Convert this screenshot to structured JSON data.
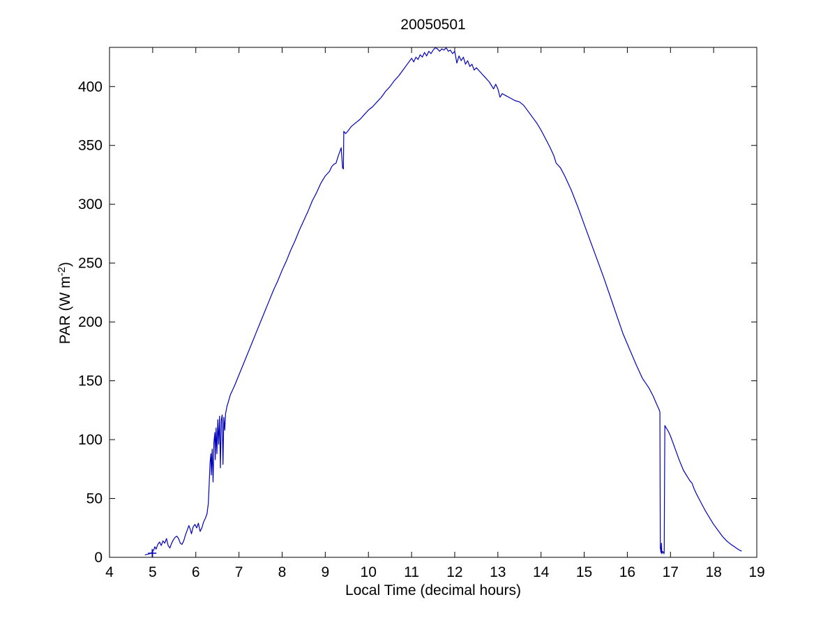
{
  "chart_data": {
    "type": "line",
    "title": "20050501",
    "xlabel": "Local Time (decimal hours)",
    "ylabel": "PAR (W m-2)",
    "ylabel_parts": {
      "prefix": "PAR (W m",
      "superscript": "-2",
      "suffix": ")"
    },
    "xlim": [
      4,
      19
    ],
    "ylim": [
      0,
      433.3
    ],
    "x_ticks": [
      4,
      5,
      6,
      7,
      8,
      9,
      10,
      11,
      12,
      13,
      14,
      15,
      16,
      17,
      18,
      19
    ],
    "y_ticks": [
      0,
      50,
      100,
      150,
      200,
      250,
      300,
      350,
      400
    ],
    "grid": false,
    "legend": false,
    "background_color": "#FFFFFF",
    "axis_color": "#000000",
    "line_color": "#0000BB",
    "marker": {
      "shape": "plus",
      "x": 4.99,
      "y": 3.5
    },
    "series": [
      {
        "name": "PAR",
        "points": [
          [
            4.82,
            2
          ],
          [
            4.87,
            2.5
          ],
          [
            4.92,
            3
          ],
          [
            4.97,
            3.5
          ],
          [
            5.02,
            6
          ],
          [
            5.05,
            9
          ],
          [
            5.08,
            7
          ],
          [
            5.12,
            11
          ],
          [
            5.16,
            13
          ],
          [
            5.2,
            10
          ],
          [
            5.24,
            14
          ],
          [
            5.28,
            12
          ],
          [
            5.32,
            16
          ],
          [
            5.36,
            10
          ],
          [
            5.4,
            8
          ],
          [
            5.44,
            12
          ],
          [
            5.48,
            15
          ],
          [
            5.52,
            17
          ],
          [
            5.56,
            18
          ],
          [
            5.6,
            16
          ],
          [
            5.64,
            12
          ],
          [
            5.68,
            11
          ],
          [
            5.72,
            14
          ],
          [
            5.76,
            19
          ],
          [
            5.8,
            23
          ],
          [
            5.84,
            27
          ],
          [
            5.87,
            24
          ],
          [
            5.9,
            20
          ],
          [
            5.94,
            26
          ],
          [
            5.98,
            28
          ],
          [
            6.02,
            25
          ],
          [
            6.06,
            29
          ],
          [
            6.1,
            22
          ],
          [
            6.14,
            25
          ],
          [
            6.18,
            30
          ],
          [
            6.22,
            33
          ],
          [
            6.26,
            37
          ],
          [
            6.29,
            46
          ],
          [
            6.31,
            62
          ],
          [
            6.33,
            80
          ],
          [
            6.35,
            88
          ],
          [
            6.36,
            70
          ],
          [
            6.38,
            92
          ],
          [
            6.4,
            64
          ],
          [
            6.42,
            98
          ],
          [
            6.44,
            106
          ],
          [
            6.45,
            83
          ],
          [
            6.47,
            110
          ],
          [
            6.49,
            88
          ],
          [
            6.51,
            117
          ],
          [
            6.53,
            96
          ],
          [
            6.55,
            120
          ],
          [
            6.57,
            76
          ],
          [
            6.59,
            116
          ],
          [
            6.61,
            121
          ],
          [
            6.63,
            79
          ],
          [
            6.65,
            119
          ],
          [
            6.67,
            108
          ],
          [
            6.69,
            122
          ],
          [
            6.72,
            128
          ],
          [
            6.76,
            133
          ],
          [
            6.8,
            138
          ],
          [
            6.9,
            146
          ],
          [
            7,
            155
          ],
          [
            7.1,
            164
          ],
          [
            7.2,
            173
          ],
          [
            7.3,
            182
          ],
          [
            7.4,
            191
          ],
          [
            7.5,
            200
          ],
          [
            7.6,
            209
          ],
          [
            7.7,
            218
          ],
          [
            7.8,
            227
          ],
          [
            7.9,
            235
          ],
          [
            8,
            244
          ],
          [
            8.1,
            252
          ],
          [
            8.2,
            261
          ],
          [
            8.3,
            269
          ],
          [
            8.4,
            278
          ],
          [
            8.5,
            286
          ],
          [
            8.6,
            294
          ],
          [
            8.7,
            303
          ],
          [
            8.8,
            310
          ],
          [
            8.9,
            318
          ],
          [
            9,
            324
          ],
          [
            9.1,
            328
          ],
          [
            9.15,
            332
          ],
          [
            9.2,
            334
          ],
          [
            9.25,
            335
          ],
          [
            9.3,
            341
          ],
          [
            9.34,
            345
          ],
          [
            9.37,
            348
          ],
          [
            9.4,
            331
          ],
          [
            9.42,
            330
          ],
          [
            9.43,
            362
          ],
          [
            9.47,
            360
          ],
          [
            9.52,
            362
          ],
          [
            9.6,
            366
          ],
          [
            9.7,
            369
          ],
          [
            9.8,
            372
          ],
          [
            9.9,
            376
          ],
          [
            10,
            380
          ],
          [
            10.1,
            383
          ],
          [
            10.2,
            387
          ],
          [
            10.3,
            391
          ],
          [
            10.4,
            396
          ],
          [
            10.5,
            400
          ],
          [
            10.6,
            405
          ],
          [
            10.7,
            409
          ],
          [
            10.8,
            414
          ],
          [
            10.9,
            419
          ],
          [
            11,
            424
          ],
          [
            11.05,
            421
          ],
          [
            11.1,
            425
          ],
          [
            11.15,
            423
          ],
          [
            11.2,
            427
          ],
          [
            11.25,
            425
          ],
          [
            11.3,
            429
          ],
          [
            11.35,
            426
          ],
          [
            11.4,
            430
          ],
          [
            11.45,
            428
          ],
          [
            11.5,
            431
          ],
          [
            11.55,
            433
          ],
          [
            11.6,
            432
          ],
          [
            11.65,
            430
          ],
          [
            11.7,
            432
          ],
          [
            11.75,
            431
          ],
          [
            11.8,
            433
          ],
          [
            11.85,
            430
          ],
          [
            11.9,
            431
          ],
          [
            11.95,
            428
          ],
          [
            12,
            430
          ],
          [
            12.05,
            420
          ],
          [
            12.1,
            426
          ],
          [
            12.15,
            422
          ],
          [
            12.2,
            425
          ],
          [
            12.25,
            419
          ],
          [
            12.3,
            422
          ],
          [
            12.35,
            417
          ],
          [
            12.4,
            419
          ],
          [
            12.45,
            414
          ],
          [
            12.5,
            416
          ],
          [
            12.6,
            412
          ],
          [
            12.7,
            408
          ],
          [
            12.8,
            404
          ],
          [
            12.9,
            398
          ],
          [
            12.95,
            402
          ],
          [
            13,
            398
          ],
          [
            13.05,
            391
          ],
          [
            13.1,
            394
          ],
          [
            13.2,
            392
          ],
          [
            13.3,
            390
          ],
          [
            13.4,
            388
          ],
          [
            13.5,
            387
          ],
          [
            13.6,
            384
          ],
          [
            13.7,
            379
          ],
          [
            13.8,
            374
          ],
          [
            13.9,
            369
          ],
          [
            14,
            363
          ],
          [
            14.1,
            356
          ],
          [
            14.2,
            349
          ],
          [
            14.3,
            341
          ],
          [
            14.35,
            335
          ],
          [
            14.45,
            331
          ],
          [
            14.55,
            324
          ],
          [
            14.7,
            312
          ],
          [
            14.85,
            298
          ],
          [
            15,
            283
          ],
          [
            15.15,
            268
          ],
          [
            15.3,
            253
          ],
          [
            15.45,
            238
          ],
          [
            15.6,
            222
          ],
          [
            15.75,
            206
          ],
          [
            15.9,
            190
          ],
          [
            16.05,
            177
          ],
          [
            16.2,
            164
          ],
          [
            16.35,
            152
          ],
          [
            16.5,
            144
          ],
          [
            16.6,
            137
          ],
          [
            16.68,
            130
          ],
          [
            16.73,
            126
          ],
          [
            16.75,
            124
          ],
          [
            16.755,
            123
          ],
          [
            16.76,
            60
          ],
          [
            16.765,
            8
          ],
          [
            16.78,
            4
          ],
          [
            16.79,
            12
          ],
          [
            16.8,
            3
          ],
          [
            16.82,
            5
          ],
          [
            16.84,
            4
          ],
          [
            16.85,
            3
          ],
          [
            16.855,
            6
          ],
          [
            16.86,
            50
          ],
          [
            16.87,
            112
          ],
          [
            16.9,
            110
          ],
          [
            16.95,
            107
          ],
          [
            17,
            103
          ],
          [
            17.05,
            98
          ],
          [
            17.1,
            93
          ],
          [
            17.2,
            83
          ],
          [
            17.3,
            74
          ],
          [
            17.4,
            68
          ],
          [
            17.45,
            65
          ],
          [
            17.5,
            63
          ],
          [
            17.55,
            58
          ],
          [
            17.6,
            54
          ],
          [
            17.7,
            47
          ],
          [
            17.8,
            40
          ],
          [
            17.9,
            34
          ],
          [
            18,
            28
          ],
          [
            18.1,
            23
          ],
          [
            18.2,
            18
          ],
          [
            18.3,
            14
          ],
          [
            18.4,
            11
          ],
          [
            18.5,
            8.5
          ],
          [
            18.58,
            6.5
          ],
          [
            18.65,
            5.2
          ]
        ]
      }
    ]
  }
}
